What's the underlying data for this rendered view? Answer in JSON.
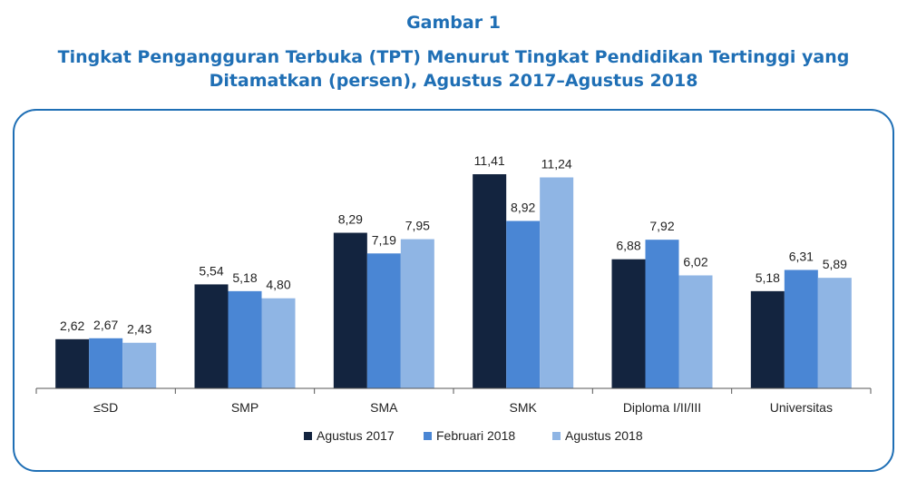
{
  "heading": "Gambar 1",
  "chart_data": {
    "type": "bar",
    "title_lines": [
      "Tingkat Pengangguran Terbuka (TPT) Menurut Tingkat Pendidikan Tertinggi yang",
      "Ditamatkan (persen), Agustus 2017–Agustus 2018"
    ],
    "categories": [
      "≤SD",
      "SMP",
      "SMA",
      "SMK",
      "Diploma I/II/III",
      "Universitas"
    ],
    "series": [
      {
        "name": "Agustus 2017",
        "color": "#13243f",
        "values": [
          2.62,
          5.54,
          8.29,
          11.41,
          6.88,
          5.18
        ]
      },
      {
        "name": "Februari 2018",
        "color": "#4a86d4",
        "values": [
          2.67,
          5.18,
          7.19,
          8.92,
          7.92,
          6.31
        ]
      },
      {
        "name": "Agustus 2018",
        "color": "#8fb5e4",
        "values": [
          2.43,
          4.8,
          7.95,
          11.24,
          6.02,
          5.89
        ]
      }
    ],
    "data_labels": [
      [
        "2,62",
        "5,54",
        "8,29",
        "11,41",
        "6,88",
        "5,18"
      ],
      [
        "2,67",
        "5,18",
        "7,19",
        "8,92",
        "7,92",
        "6,31"
      ],
      [
        "2,43",
        "4,80",
        "7,95",
        "11,24",
        "6,02",
        "5,89"
      ]
    ],
    "ylim": [
      0,
      12
    ],
    "grid": false,
    "legend_position": "bottom"
  }
}
